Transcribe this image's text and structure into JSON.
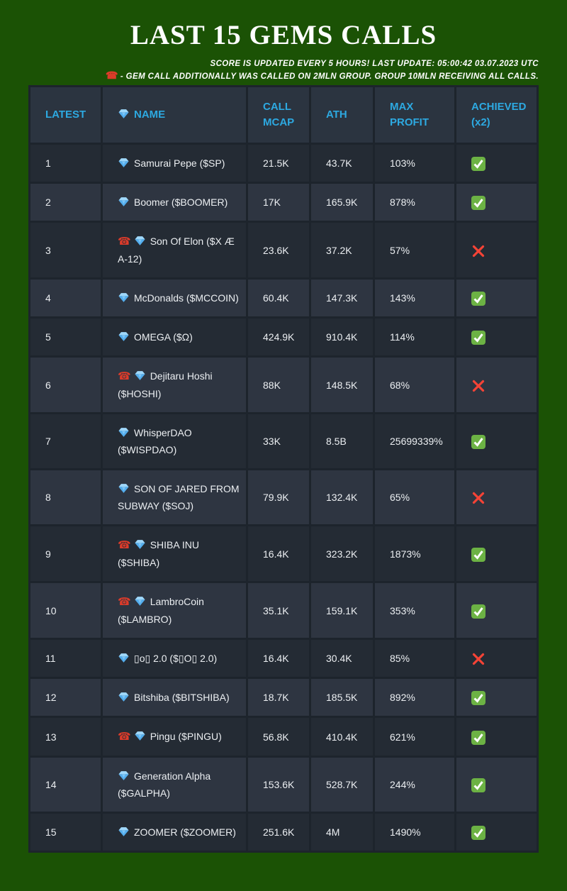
{
  "page": {
    "title": "LAST 15 GEMS CALLS",
    "note_line1": "SCORE IS UPDATED EVERY 5 HOURS! LAST UPDATE: 05:00:42 03.07.2023 UTC",
    "note_line2": "- GEM CALL ADDITIONALLY WAS CALLED ON 2MLN GROUP. GROUP 10MLN RECEIVING ALL CALLS."
  },
  "icons": {
    "alarm": "red-telephone",
    "gem": "blue-gem",
    "achieved_yes": "green-check-box",
    "achieved_no": "red-cross"
  },
  "colors": {
    "background_green": "#1b5205",
    "table_gap": "#1d242c",
    "header_bg": "#2b3440",
    "header_text": "#2da9e1",
    "row_dark": "#242b34",
    "row_light": "#2e3541",
    "body_text": "#eceff2",
    "check_green": "#6cb244",
    "cross_red": "#f54336",
    "phone_red": "#dd3b2a",
    "gem_blue": "#54aeee"
  },
  "table": {
    "columns": [
      "LATEST",
      "NAME",
      "CALL MCAP",
      "ATH",
      "MAX PROFIT",
      "ACHIEVED (x2)"
    ],
    "rows": [
      {
        "latest": "1",
        "alarm": false,
        "name": "Samurai Pepe ($SP)",
        "call_mcap": "21.5K",
        "ath": "43.7K",
        "max_profit": "103%",
        "achieved": true
      },
      {
        "latest": "2",
        "alarm": false,
        "name": "Boomer ($BOOMER)",
        "call_mcap": "17K",
        "ath": "165.9K",
        "max_profit": "878%",
        "achieved": true
      },
      {
        "latest": "3",
        "alarm": true,
        "name": "Son Of Elon ($X Æ A-12)",
        "call_mcap": "23.6K",
        "ath": "37.2K",
        "max_profit": "57%",
        "achieved": false
      },
      {
        "latest": "4",
        "alarm": false,
        "name": "McDonalds ($MCCOIN)",
        "call_mcap": "60.4K",
        "ath": "147.3K",
        "max_profit": "143%",
        "achieved": true
      },
      {
        "latest": "5",
        "alarm": false,
        "name": "OMEGA ($Ω)",
        "call_mcap": "424.9K",
        "ath": "910.4K",
        "max_profit": "114%",
        "achieved": true
      },
      {
        "latest": "6",
        "alarm": true,
        "name": "Dejitaru Hoshi ($HOSHI)",
        "call_mcap": "88K",
        "ath": "148.5K",
        "max_profit": "68%",
        "achieved": false
      },
      {
        "latest": "7",
        "alarm": false,
        "name": "WhisperDAO ($WISPDAO)",
        "call_mcap": "33K",
        "ath": "8.5B",
        "max_profit": "25699339%",
        "achieved": true
      },
      {
        "latest": "8",
        "alarm": false,
        "name": "SON OF JARED FROM SUBWAY ($SOJ)",
        "call_mcap": "79.9K",
        "ath": "132.4K",
        "max_profit": "65%",
        "achieved": false
      },
      {
        "latest": "9",
        "alarm": true,
        "name": "SHIBA INU ($SHIBA)",
        "call_mcap": "16.4K",
        "ath": "323.2K",
        "max_profit": "1873%",
        "achieved": true
      },
      {
        "latest": "10",
        "alarm": true,
        "name": "LambroCoin ($LAMBRO)",
        "call_mcap": "35.1K",
        "ath": "159.1K",
        "max_profit": "353%",
        "achieved": true
      },
      {
        "latest": "11",
        "alarm": false,
        "name": "▯o▯ 2.0 ($▯O▯ 2.0)",
        "call_mcap": "16.4K",
        "ath": "30.4K",
        "max_profit": "85%",
        "achieved": false
      },
      {
        "latest": "12",
        "alarm": false,
        "name": "Bitshiba ($BITSHIBA)",
        "call_mcap": "18.7K",
        "ath": "185.5K",
        "max_profit": "892%",
        "achieved": true
      },
      {
        "latest": "13",
        "alarm": true,
        "name": "Pingu ($PINGU)",
        "call_mcap": "56.8K",
        "ath": "410.4K",
        "max_profit": "621%",
        "achieved": true
      },
      {
        "latest": "14",
        "alarm": false,
        "name": "Generation Alpha ($GALPHA)",
        "call_mcap": "153.6K",
        "ath": "528.7K",
        "max_profit": "244%",
        "achieved": true
      },
      {
        "latest": "15",
        "alarm": false,
        "name": "ZOOMER ($ZOOMER)",
        "call_mcap": "251.6K",
        "ath": "4M",
        "max_profit": "1490%",
        "achieved": true
      }
    ]
  },
  "chart_data": {
    "type": "table",
    "title": "LAST 15 GEMS CALLS",
    "columns": [
      "LATEST",
      "NAME",
      "CALL MCAP",
      "ATH",
      "MAX PROFIT",
      "ACHIEVED (x2)"
    ],
    "rows": [
      [
        "1",
        "Samurai Pepe ($SP)",
        "21.5K",
        "43.7K",
        "103%",
        "yes"
      ],
      [
        "2",
        "Boomer ($BOOMER)",
        "17K",
        "165.9K",
        "878%",
        "yes"
      ],
      [
        "3",
        "Son Of Elon ($X Æ A-12)",
        "23.6K",
        "37.2K",
        "57%",
        "no"
      ],
      [
        "4",
        "McDonalds ($MCCOIN)",
        "60.4K",
        "147.3K",
        "143%",
        "yes"
      ],
      [
        "5",
        "OMEGA ($Ω)",
        "424.9K",
        "910.4K",
        "114%",
        "yes"
      ],
      [
        "6",
        "Dejitaru Hoshi ($HOSHI)",
        "88K",
        "148.5K",
        "68%",
        "no"
      ],
      [
        "7",
        "WhisperDAO ($WISPDAO)",
        "33K",
        "8.5B",
        "25699339%",
        "yes"
      ],
      [
        "8",
        "SON OF JARED FROM SUBWAY ($SOJ)",
        "79.9K",
        "132.4K",
        "65%",
        "no"
      ],
      [
        "9",
        "SHIBA INU ($SHIBA)",
        "16.4K",
        "323.2K",
        "1873%",
        "yes"
      ],
      [
        "10",
        "LambroCoin ($LAMBRO)",
        "35.1K",
        "159.1K",
        "353%",
        "yes"
      ],
      [
        "11",
        "▯o▯ 2.0 ($▯O▯ 2.0)",
        "16.4K",
        "30.4K",
        "85%",
        "no"
      ],
      [
        "12",
        "Bitshiba ($BITSHIBA)",
        "18.7K",
        "185.5K",
        "892%",
        "yes"
      ],
      [
        "13",
        "Pingu ($PINGU)",
        "56.8K",
        "410.4K",
        "621%",
        "yes"
      ],
      [
        "14",
        "Generation Alpha ($GALPHA)",
        "153.6K",
        "528.7K",
        "244%",
        "yes"
      ],
      [
        "15",
        "ZOOMER ($ZOOMER)",
        "251.6K",
        "4M",
        "1490%",
        "yes"
      ]
    ]
  }
}
